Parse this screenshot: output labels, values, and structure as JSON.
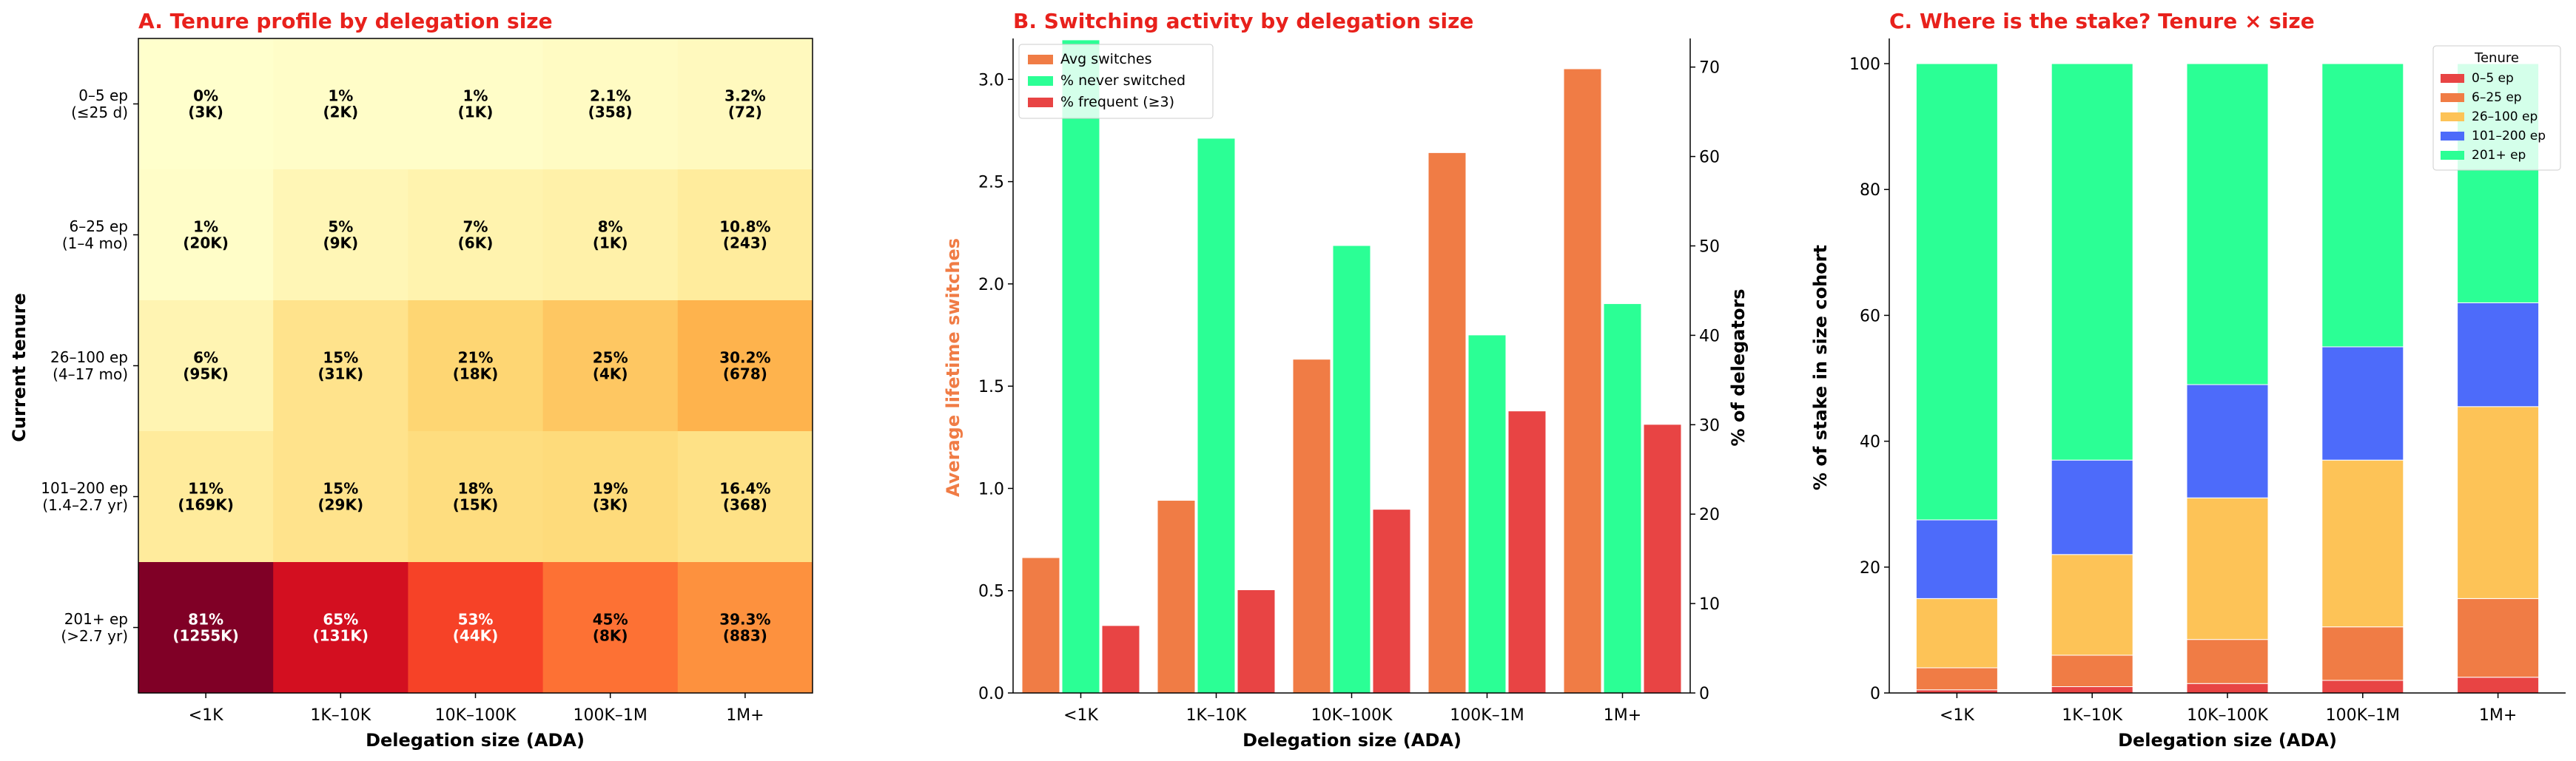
{
  "chart_data": [
    {
      "type": "heatmap",
      "title": "A. Tenure profile by delegation size",
      "xlabel": "Delegation size (ADA)",
      "ylabel": "Current tenure",
      "x_categories": [
        "<1K",
        "1K–10K",
        "10K–100K",
        "100K–1M",
        "1M+"
      ],
      "y_categories": [
        "0–5 ep\n(≤25 d)",
        "6–25 ep\n(1–4 mo)",
        "26–100 ep\n(4–17 mo)",
        "101–200 ep\n(1.4–2.7 yr)",
        "201+ ep\n(>2.7 yr)"
      ],
      "values": [
        [
          0,
          1,
          1,
          2.1,
          3.2
        ],
        [
          1,
          5,
          7,
          8,
          10.8
        ],
        [
          6,
          15,
          21,
          25,
          30.2
        ],
        [
          11,
          15,
          18,
          19,
          16.4
        ],
        [
          81,
          65,
          53,
          45,
          39.3
        ]
      ],
      "cell_labels": [
        [
          "0%\n(3K)",
          "1%\n(2K)",
          "1%\n(1K)",
          "2.1%\n(358)",
          "3.2%\n(72)"
        ],
        [
          "1%\n(20K)",
          "5%\n(9K)",
          "7%\n(6K)",
          "8%\n(1K)",
          "10.8%\n(243)"
        ],
        [
          "6%\n(95K)",
          "15%\n(31K)",
          "21%\n(18K)",
          "25%\n(4K)",
          "30.2%\n(678)"
        ],
        [
          "11%\n(169K)",
          "15%\n(29K)",
          "18%\n(15K)",
          "19%\n(3K)",
          "16.4%\n(368)"
        ],
        [
          "81%\n(1255K)",
          "65%\n(131K)",
          "53%\n(44K)",
          "45%\n(8K)",
          "39.3%\n(883)"
        ]
      ],
      "colormap": "YlOrRd",
      "value_range": [
        0,
        81
      ]
    },
    {
      "type": "bar",
      "title": "B. Switching activity by delegation size",
      "xlabel": "Delegation size (ADA)",
      "ylabel": "Average lifetime switches",
      "y2label": "% of delegators",
      "categories": [
        "<1K",
        "1K–10K",
        "10K–100K",
        "100K–1M",
        "1M+"
      ],
      "ylim": [
        0,
        3.2
      ],
      "yticks": [
        0.0,
        0.5,
        1.0,
        1.5,
        2.0,
        2.5,
        3.0
      ],
      "y2lim": [
        0,
        73.2
      ],
      "y2ticks": [
        0,
        10,
        20,
        30,
        40,
        50,
        60,
        70
      ],
      "legend_position": "top-left",
      "series": [
        {
          "name": "Avg switches",
          "axis": "left",
          "color": "#f07c45",
          "values": [
            0.66,
            0.94,
            1.63,
            2.64,
            3.05
          ]
        },
        {
          "name": "% never switched",
          "axis": "right",
          "color": "#2bff95",
          "values": [
            73,
            62,
            50,
            40,
            43.5
          ]
        },
        {
          "name": "% frequent (≥3)",
          "axis": "right",
          "color": "#e84444",
          "values": [
            7.5,
            11.5,
            20.5,
            31.5,
            30
          ]
        }
      ]
    },
    {
      "type": "bar",
      "stacked": true,
      "title": "C. Where is the stake? Tenure × size",
      "xlabel": "Delegation size (ADA)",
      "ylabel": "% of stake in size cohort",
      "categories": [
        "<1K",
        "1K–10K",
        "10K–100K",
        "100K–1M",
        "1M+"
      ],
      "ylim": [
        0,
        104
      ],
      "yticks": [
        0,
        20,
        40,
        60,
        80,
        100
      ],
      "legend_title": "Tenure",
      "legend_position": "top-right",
      "series": [
        {
          "name": "0–5 ep",
          "color": "#e84444",
          "values": [
            0.5,
            1,
            1.5,
            2,
            2.5
          ]
        },
        {
          "name": "6–25 ep",
          "color": "#f07c45",
          "values": [
            3.5,
            5,
            7,
            8.5,
            12.5
          ]
        },
        {
          "name": "26–100 ep",
          "color": "#fdc357",
          "values": [
            11,
            16,
            22.5,
            26.5,
            30.5
          ]
        },
        {
          "name": "101–200 ep",
          "color": "#4d6bfa",
          "values": [
            12.5,
            15,
            18,
            18,
            16.5
          ]
        },
        {
          "name": "201+ ep",
          "color": "#2bff95",
          "values": [
            72.5,
            63,
            51,
            45,
            38
          ]
        }
      ]
    }
  ]
}
